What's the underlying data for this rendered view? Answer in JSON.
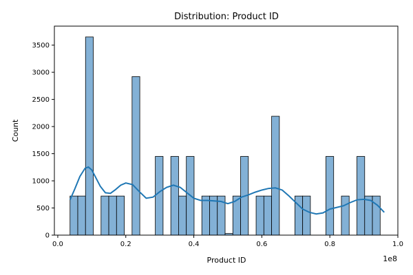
{
  "chart_data": {
    "type": "bar",
    "title": "Distribution: Product ID",
    "xlabel": "Product ID",
    "ylabel": "Count",
    "x_offset_label": "1e8",
    "xlim": [
      -0.01,
      1.0
    ],
    "ylim": [
      0,
      3850
    ],
    "x_ticks": [
      {
        "value": 0.0,
        "label": "0.0"
      },
      {
        "value": 0.2,
        "label": "0.2"
      },
      {
        "value": 0.4,
        "label": "0.4"
      },
      {
        "value": 0.6,
        "label": "0.6"
      },
      {
        "value": 0.8,
        "label": "0.8"
      },
      {
        "value": 1.0,
        "label": "1.0"
      }
    ],
    "y_ticks": [
      {
        "value": 0,
        "label": "0"
      },
      {
        "value": 500,
        "label": "500"
      },
      {
        "value": 1000,
        "label": "1000"
      },
      {
        "value": 1500,
        "label": "1500"
      },
      {
        "value": 2000,
        "label": "2000"
      },
      {
        "value": 2500,
        "label": "2500"
      },
      {
        "value": 3000,
        "label": "3000"
      },
      {
        "value": 3500,
        "label": "3500"
      }
    ],
    "bin_start": 0.036,
    "bin_width": 0.0228,
    "values": [
      720,
      720,
      3650,
      0,
      720,
      720,
      720,
      0,
      2920,
      0,
      0,
      1450,
      0,
      1450,
      720,
      1450,
      0,
      720,
      720,
      720,
      30,
      720,
      1450,
      0,
      720,
      720,
      2190,
      0,
      0,
      720,
      720,
      0,
      0,
      1450,
      0,
      720,
      0,
      1450,
      720,
      720
    ],
    "kde_x": [
      0.036,
      0.05,
      0.065,
      0.08,
      0.09,
      0.1,
      0.11,
      0.125,
      0.14,
      0.155,
      0.17,
      0.185,
      0.2,
      0.22,
      0.24,
      0.26,
      0.28,
      0.3,
      0.32,
      0.34,
      0.36,
      0.38,
      0.4,
      0.42,
      0.44,
      0.46,
      0.48,
      0.5,
      0.52,
      0.54,
      0.56,
      0.58,
      0.6,
      0.62,
      0.64,
      0.66,
      0.68,
      0.7,
      0.72,
      0.74,
      0.76,
      0.78,
      0.8,
      0.82,
      0.84,
      0.86,
      0.88,
      0.9,
      0.92,
      0.94,
      0.96
    ],
    "kde_y": [
      650,
      850,
      1080,
      1230,
      1255,
      1200,
      1080,
      900,
      780,
      770,
      840,
      920,
      960,
      930,
      800,
      680,
      700,
      800,
      880,
      920,
      880,
      780,
      680,
      640,
      640,
      630,
      620,
      580,
      620,
      700,
      740,
      790,
      830,
      860,
      870,
      830,
      720,
      600,
      480,
      420,
      390,
      410,
      480,
      510,
      540,
      600,
      650,
      660,
      640,
      550,
      420
    ],
    "bar_color": "#83b1d6",
    "bar_edge_color": "#000000",
    "kde_color": "#1f77b4",
    "grid": false,
    "legend": "none"
  }
}
